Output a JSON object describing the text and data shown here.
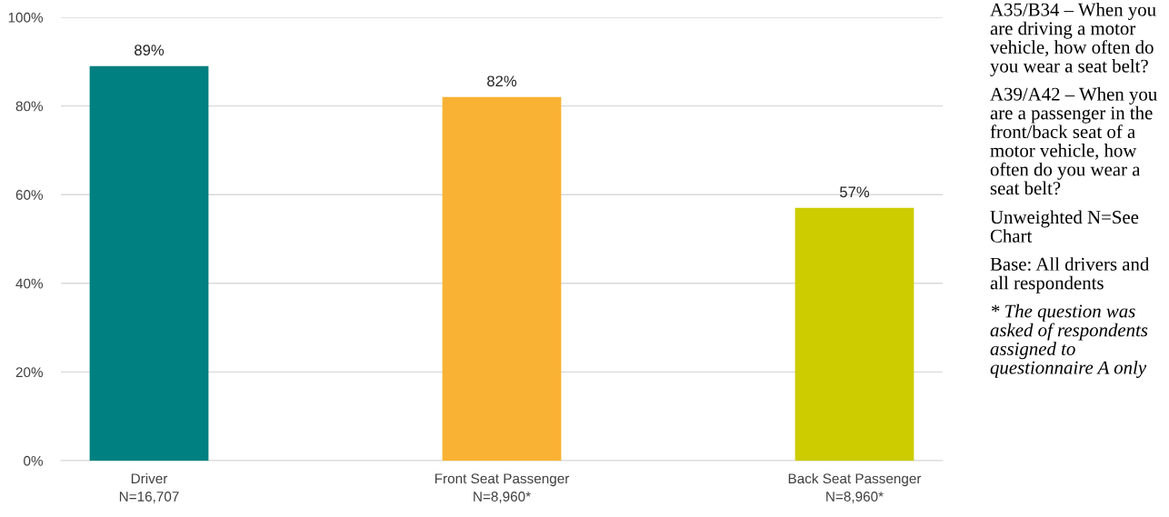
{
  "chart_data": {
    "type": "bar",
    "categories": [
      "Driver\nN=16,707",
      "Front Seat Passenger\nN=8,960*",
      "Back Seat Passenger\nN=8,960*"
    ],
    "values": [
      89,
      82,
      57
    ],
    "colors": [
      "#008080",
      "#f9b233",
      "#cccc00"
    ],
    "value_labels": [
      "89%",
      "82%",
      "57%"
    ],
    "ylim": [
      0,
      100
    ],
    "yticks": [
      {
        "value": 0,
        "label": "0%"
      },
      {
        "value": 20,
        "label": "20%"
      },
      {
        "value": 40,
        "label": "40%"
      },
      {
        "value": 60,
        "label": "60%"
      },
      {
        "value": 80,
        "label": "80%"
      },
      {
        "value": 100,
        "label": "100%"
      }
    ],
    "grid": "y",
    "annotations": [
      "A35/B34 – When you\nare driving a motor\nvehicle, how often do\nyou wear a seat belt?",
      "A39/A42 – When you\nare a passenger in the\nfront/back seat of a\nmotor vehicle, how\noften do you wear a\nseat belt?",
      "Unweighted N=See\nChart",
      "Base: All drivers and\nall respondents",
      "* The question was\nasked of respondents\nassigned to\nquestionnaire A only"
    ]
  }
}
